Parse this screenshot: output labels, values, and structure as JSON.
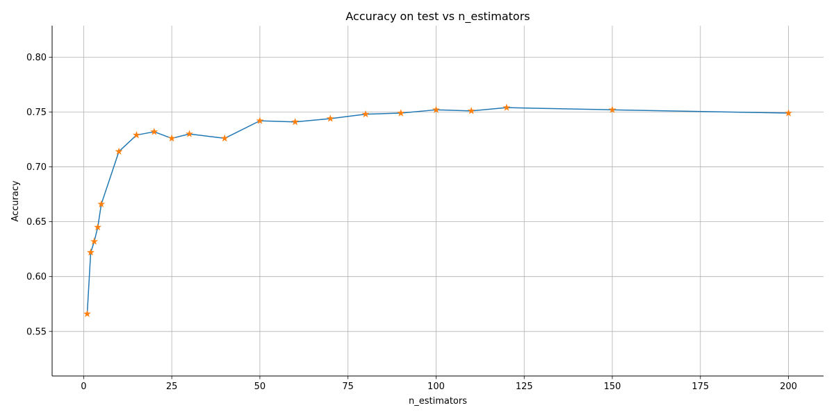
{
  "chart_data": {
    "type": "line",
    "title": "Accuracy on test vs n_estimators",
    "xlabel": "n_estimators",
    "ylabel": "Accuracy",
    "xlim": [
      -8.95,
      209.95
    ],
    "ylim": [
      0.5094,
      0.8287
    ],
    "xticks": [
      0,
      25,
      50,
      75,
      100,
      125,
      150,
      175,
      200
    ],
    "xtick_labels": [
      "0",
      "25",
      "50",
      "75",
      "100",
      "125",
      "150",
      "175",
      "200"
    ],
    "yticks": [
      0.55,
      0.6,
      0.65,
      0.7,
      0.75,
      0.8
    ],
    "ytick_labels": [
      "0.55",
      "0.60",
      "0.65",
      "0.70",
      "0.75",
      "0.80"
    ],
    "grid": true,
    "line_color": "#1f77b4",
    "marker_color": "#ff7f0e",
    "marker": "star",
    "series": [
      {
        "x": [
          1,
          2,
          3,
          4,
          5,
          10,
          15,
          20,
          25,
          30,
          40,
          50,
          60,
          70,
          80,
          90,
          100,
          110,
          120,
          150,
          200
        ],
        "y": [
          0.566,
          0.622,
          0.632,
          0.645,
          0.666,
          0.714,
          0.729,
          0.732,
          0.726,
          0.73,
          0.726,
          0.742,
          0.741,
          0.744,
          0.748,
          0.749,
          0.752,
          0.751,
          0.754,
          0.752,
          0.749
        ]
      }
    ]
  }
}
